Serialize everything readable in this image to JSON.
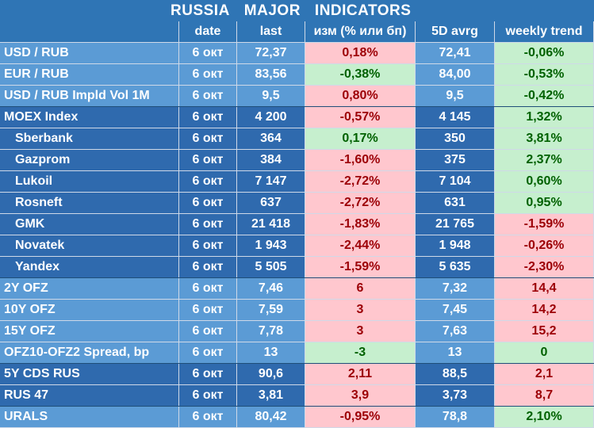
{
  "title_parts": [
    "RUSSIA",
    "MAJOR",
    "INDICATORS"
  ],
  "headers": [
    "",
    "date",
    "last",
    "изм (% или бп)",
    "5D avrg",
    "weekly trend"
  ],
  "rows": [
    {
      "name": "USD / RUB",
      "date": "6 окт",
      "last": "72,37",
      "chg": "0,18%",
      "avg": "72,41",
      "trend": "-0,06%",
      "chg_sign": "neg",
      "trend_sign": "pos",
      "group": "light",
      "indent": false
    },
    {
      "name": "EUR / RUB",
      "date": "6 окт",
      "last": "83,56",
      "chg": "-0,38%",
      "avg": "84,00",
      "trend": "-0,53%",
      "chg_sign": "pos",
      "trend_sign": "pos",
      "group": "light",
      "indent": false
    },
    {
      "name": "USD / RUB Impld Vol 1M",
      "date": "6 окт",
      "last": "9,5",
      "chg": "0,80%",
      "avg": "9,5",
      "trend": "-0,42%",
      "chg_sign": "neg",
      "trend_sign": "pos",
      "group": "light",
      "indent": false
    },
    {
      "name": "MOEX Index",
      "date": "6 окт",
      "last": "4 200",
      "chg": "-0,57%",
      "avg": "4 145",
      "trend": "1,32%",
      "chg_sign": "neg",
      "trend_sign": "pos",
      "group": "dark",
      "indent": false
    },
    {
      "name": "Sberbank",
      "date": "6 окт",
      "last": "364",
      "chg": "0,17%",
      "avg": "350",
      "trend": "3,81%",
      "chg_sign": "pos",
      "trend_sign": "pos",
      "group": "dark",
      "indent": true
    },
    {
      "name": "Gazprom",
      "date": "6 окт",
      "last": "384",
      "chg": "-1,60%",
      "avg": "375",
      "trend": "2,37%",
      "chg_sign": "neg",
      "trend_sign": "pos",
      "group": "dark",
      "indent": true
    },
    {
      "name": "Lukoil",
      "date": "6 окт",
      "last": "7 147",
      "chg": "-2,72%",
      "avg": "7 104",
      "trend": "0,60%",
      "chg_sign": "neg",
      "trend_sign": "pos",
      "group": "dark",
      "indent": true
    },
    {
      "name": "Rosneft",
      "date": "6 окт",
      "last": "637",
      "chg": "-2,72%",
      "avg": "631",
      "trend": "0,95%",
      "chg_sign": "neg",
      "trend_sign": "pos",
      "group": "dark",
      "indent": true
    },
    {
      "name": "GMK",
      "date": "6 окт",
      "last": "21 418",
      "chg": "-1,83%",
      "avg": "21 765",
      "trend": "-1,59%",
      "chg_sign": "neg",
      "trend_sign": "neg",
      "group": "dark",
      "indent": true
    },
    {
      "name": "Novatek",
      "date": "6 окт",
      "last": "1 943",
      "chg": "-2,44%",
      "avg": "1 948",
      "trend": "-0,26%",
      "chg_sign": "neg",
      "trend_sign": "neg",
      "group": "dark",
      "indent": true
    },
    {
      "name": "Yandex",
      "date": "6 окт",
      "last": "5 505",
      "chg": "-1,59%",
      "avg": "5 635",
      "trend": "-2,30%",
      "chg_sign": "neg",
      "trend_sign": "neg",
      "group": "dark",
      "indent": true
    },
    {
      "name": "2Y OFZ",
      "date": "6 окт",
      "last": "7,46",
      "chg": "6",
      "avg": "7,32",
      "trend": "14,4",
      "chg_sign": "neg",
      "trend_sign": "neg",
      "group": "light",
      "indent": false
    },
    {
      "name": "10Y OFZ",
      "date": "6 окт",
      "last": "7,59",
      "chg": "3",
      "avg": "7,45",
      "trend": "14,2",
      "chg_sign": "neg",
      "trend_sign": "neg",
      "group": "light",
      "indent": false
    },
    {
      "name": "15Y OFZ",
      "date": "6 окт",
      "last": "7,78",
      "chg": "3",
      "avg": "7,63",
      "trend": "15,2",
      "chg_sign": "neg",
      "trend_sign": "neg",
      "group": "light",
      "indent": false
    },
    {
      "name": "OFZ10-OFZ2 Spread, bp",
      "date": "6 окт",
      "last": "13",
      "chg": "-3",
      "avg": "13",
      "trend": "0",
      "chg_sign": "pos",
      "trend_sign": "pos",
      "group": "light",
      "indent": false
    },
    {
      "name": "5Y CDS RUS",
      "date": "6 окт",
      "last": "90,6",
      "chg": "2,11",
      "avg": "88,5",
      "trend": "2,1",
      "chg_sign": "neg",
      "trend_sign": "neg",
      "group": "dark",
      "indent": false
    },
    {
      "name": "RUS 47",
      "date": "6 окт",
      "last": "3,81",
      "chg": "3,9",
      "avg": "3,73",
      "trend": "8,7",
      "chg_sign": "neg",
      "trend_sign": "neg",
      "group": "dark",
      "indent": false
    },
    {
      "name": "URALS",
      "date": "6 окт",
      "last": "80,42",
      "chg": "-0,95%",
      "avg": "78,8",
      "trend": "2,10%",
      "chg_sign": "neg",
      "trend_sign": "pos",
      "group": "light",
      "indent": false
    }
  ]
}
